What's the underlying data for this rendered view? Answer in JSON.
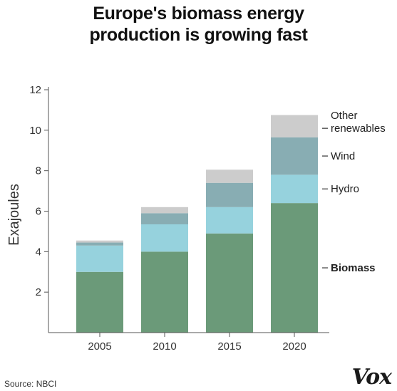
{
  "title_lines": [
    "Europe's biomass energy",
    "production is growing fast"
  ],
  "source": "Source: NBCI",
  "brand": "Vox",
  "chart_data": {
    "type": "bar",
    "stacked": true,
    "categories": [
      "2005",
      "2010",
      "2015",
      "2020"
    ],
    "series": [
      {
        "name": "Biomass",
        "values": [
          3.0,
          4.0,
          4.9,
          6.4
        ],
        "color": "#6b9a79",
        "bold": true
      },
      {
        "name": "Hydro",
        "values": [
          1.3,
          1.35,
          1.3,
          1.4
        ],
        "color": "#96d2dd"
      },
      {
        "name": "Wind",
        "values": [
          0.15,
          0.55,
          1.2,
          1.85
        ],
        "color": "#88adb3"
      },
      {
        "name": "Other renewables",
        "values": [
          0.1,
          0.3,
          0.65,
          1.1
        ],
        "color": "#cccccc",
        "label_lines": [
          "Other",
          "renewables"
        ]
      }
    ],
    "ylabel": "Exajoules",
    "ylim": [
      0,
      12
    ],
    "yticks": [
      2,
      4,
      6,
      8,
      10,
      12
    ],
    "grid": false,
    "legend": "right"
  }
}
